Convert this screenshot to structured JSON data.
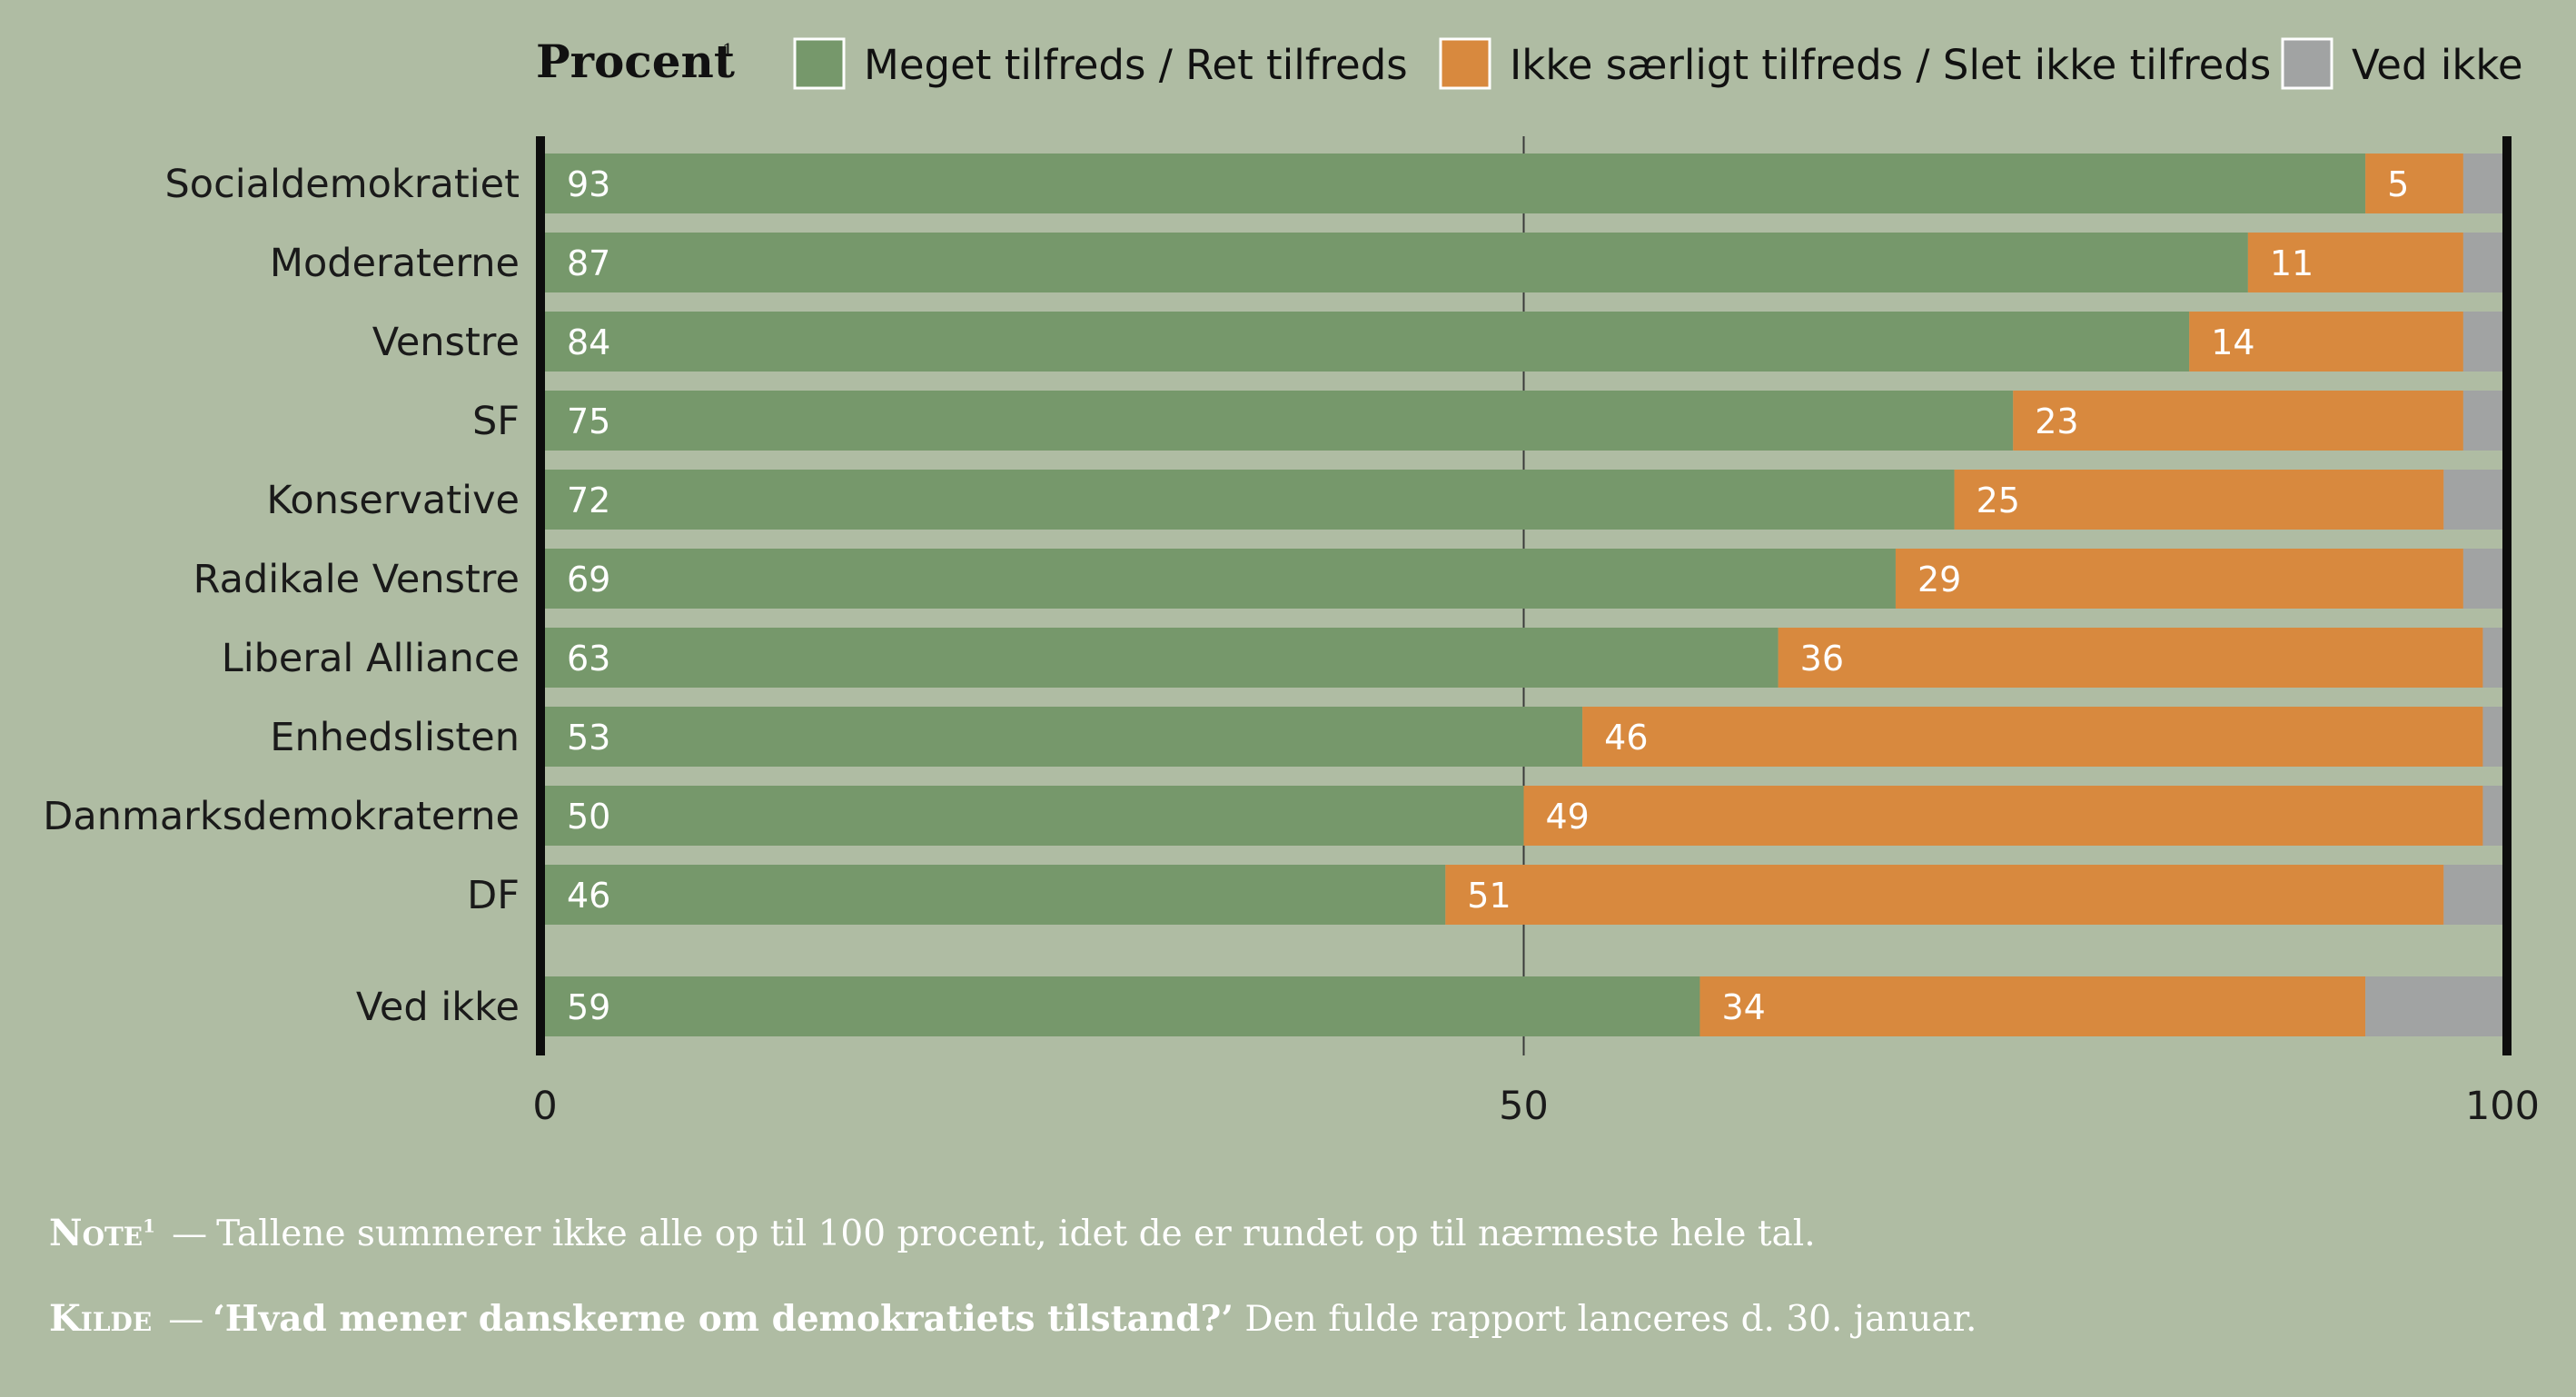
{
  "legend": {
    "title": "Procent",
    "title_sup": "1",
    "items": [
      {
        "label": "Meget tilfreds / Ret tilfreds",
        "color": "#76986b"
      },
      {
        "label": "Ikke særligt tilfreds / Slet ikke tilfreds",
        "color": "#d8893e"
      },
      {
        "label": "Ved ikke",
        "color": "#a1a3a3"
      }
    ]
  },
  "chart_data": {
    "type": "bar",
    "orientation": "horizontal",
    "stacked": true,
    "categories": [
      "Socialdemokratiet",
      "Moderaterne",
      "Venstre",
      "SF",
      "Konservative",
      "Radikale Venstre",
      "Liberal Alliance",
      "Enhedslisten",
      "Danmarksdemokraterne",
      "DF",
      "Ved ikke"
    ],
    "series": [
      {
        "name": "Meget tilfreds / Ret tilfreds",
        "values": [
          93,
          87,
          84,
          75,
          72,
          69,
          63,
          53,
          50,
          46,
          59
        ],
        "color": "#76986b"
      },
      {
        "name": "Ikke særligt tilfreds / Slet ikke tilfreds",
        "values": [
          5,
          11,
          14,
          23,
          25,
          29,
          36,
          46,
          49,
          51,
          34
        ],
        "color": "#d8893e"
      },
      {
        "name": "Ved ikke",
        "values": [
          2,
          2,
          2,
          2,
          3,
          2,
          1,
          1,
          1,
          3,
          7
        ],
        "color": "#a1a3a3"
      }
    ],
    "xlim": [
      0,
      100
    ],
    "xticks": [
      0,
      50,
      100
    ],
    "grid_lines_at": [
      50
    ],
    "label_color": "#ffffff"
  },
  "notes": {
    "note_lead": "Note",
    "note_sup": "1",
    "note_text": "Tallene summerer ikke alle op til 100 procent, idet de er rundet op til nærmeste hele tal.",
    "source_lead": "Kilde",
    "source_quote": "‘Hvad mener danskerne om demokratiets tilstand?’",
    "source_text": " Den fulde rapport lanceres d. 30. januar."
  }
}
